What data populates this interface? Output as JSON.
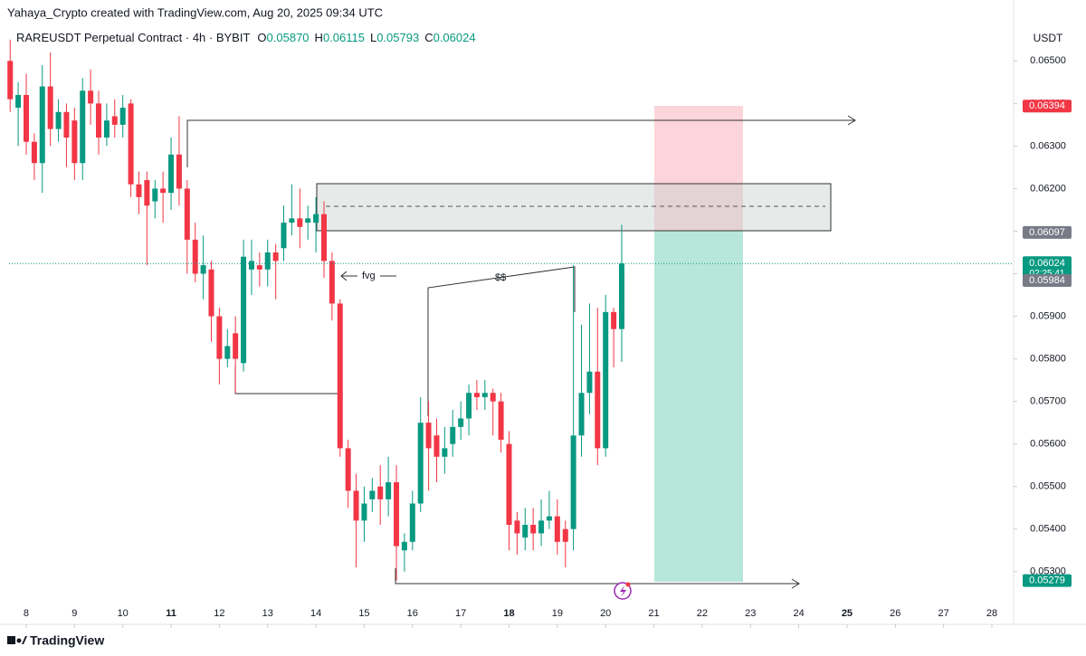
{
  "header": "Yahaya_Crypto created with TradingView.com, Aug 20, 2025 09:34 UTC",
  "legend": {
    "symbol": "RAREUSDT Perpetual Contract · 4h · BYBIT",
    "ohlc": [
      {
        "key": "O",
        "value": "0.05870"
      },
      {
        "key": "H",
        "value": "0.06115"
      },
      {
        "key": "L",
        "value": "0.05793"
      },
      {
        "key": "C",
        "value": "0.06024"
      }
    ]
  },
  "footer": "TradingView",
  "chart_data": {
    "type": "candlestick",
    "axis_unit": "USDT",
    "up_color": "#089981",
    "down_color": "#f23645",
    "x": [
      7.667,
      7.833,
      8,
      8.167,
      8.333,
      8.5,
      8.667,
      8.833,
      9,
      9.167,
      9.333,
      9.5,
      9.667,
      9.833,
      10,
      10.167,
      10.333,
      10.5,
      10.667,
      10.833,
      11,
      11.167,
      11.333,
      11.5,
      11.667,
      11.833,
      12,
      12.167,
      12.333,
      12.5,
      12.667,
      12.833,
      13,
      13.167,
      13.333,
      13.5,
      13.667,
      13.833,
      14,
      14.167,
      14.333,
      14.5,
      14.667,
      14.833,
      15,
      15.167,
      15.333,
      15.5,
      15.667,
      15.833,
      16,
      16.167,
      16.333,
      16.5,
      16.667,
      16.833,
      17,
      17.167,
      17.333,
      17.5,
      17.667,
      17.833,
      18,
      18.167,
      18.333,
      18.5,
      18.667,
      18.833,
      19,
      19.167,
      19.333,
      19.5,
      19.667,
      19.833,
      20,
      20.167,
      20.333
    ],
    "open": [
      0.065,
      0.0639,
      0.0642,
      0.0631,
      0.0626,
      0.0644,
      0.0634,
      0.0638,
      0.0636,
      0.0626,
      0.0643,
      0.064,
      0.0632,
      0.0637,
      0.0635,
      0.064,
      0.0621,
      0.0622,
      0.0617,
      0.062,
      0.0619,
      0.0628,
      0.062,
      0.0608,
      0.06,
      0.0601,
      0.059,
      0.058,
      0.0586,
      0.0579,
      0.0601,
      0.0602,
      0.0601,
      0.0605,
      0.0606,
      0.0612,
      0.0613,
      0.0612,
      0.0612,
      0.0614,
      0.0603,
      0.0593,
      0.0559,
      0.0549,
      0.0542,
      0.0547,
      0.055,
      0.0547,
      0.0551,
      0.0535,
      0.0537,
      0.0546,
      0.0565,
      0.0562,
      0.0557,
      0.056,
      0.0564,
      0.0566,
      0.0572,
      0.0571,
      0.0572,
      0.057,
      0.056,
      0.0542,
      0.0538,
      0.0541,
      0.0539,
      0.0542,
      0.0543,
      0.054,
      0.054,
      0.0562,
      0.0572,
      0.0577,
      0.0559,
      0.0591,
      0.0587
    ],
    "high": [
      0.0655,
      0.0645,
      0.0647,
      0.0633,
      0.0649,
      0.0652,
      0.0641,
      0.064,
      0.0639,
      0.0646,
      0.0648,
      0.0643,
      0.064,
      0.0641,
      0.0642,
      0.0641,
      0.0624,
      0.0624,
      0.0622,
      0.0624,
      0.0632,
      0.0637,
      0.0622,
      0.0612,
      0.0609,
      0.0603,
      0.0592,
      0.0587,
      0.059,
      0.0608,
      0.0608,
      0.0605,
      0.0608,
      0.0607,
      0.0616,
      0.0621,
      0.062,
      0.0616,
      0.0618,
      0.0617,
      0.0605,
      0.0594,
      0.0561,
      0.0553,
      0.055,
      0.0552,
      0.0555,
      0.0557,
      0.0555,
      0.0539,
      0.0549,
      0.0571,
      0.057,
      0.0566,
      0.0564,
      0.0568,
      0.057,
      0.0574,
      0.0575,
      0.0575,
      0.0573,
      0.0572,
      0.0563,
      0.0544,
      0.0545,
      0.0545,
      0.0547,
      0.0549,
      0.0547,
      0.0542,
      0.0602,
      0.0588,
      0.0593,
      0.0592,
      0.0595,
      0.0592,
      0.06115
    ],
    "low": [
      0.0638,
      0.063,
      0.0628,
      0.0622,
      0.0619,
      0.063,
      0.0631,
      0.0625,
      0.0622,
      0.0622,
      0.0635,
      0.0628,
      0.063,
      0.0632,
      0.0632,
      0.0618,
      0.0614,
      0.0602,
      0.0613,
      0.0612,
      0.0615,
      0.0616,
      0.06,
      0.0598,
      0.0594,
      0.0584,
      0.0574,
      0.0578,
      0.0572,
      0.0577,
      0.0595,
      0.0597,
      0.0597,
      0.0594,
      0.0603,
      0.0609,
      0.0606,
      0.0608,
      0.0605,
      0.0599,
      0.0589,
      0.0557,
      0.0545,
      0.0531,
      0.0537,
      0.0544,
      0.0541,
      0.0543,
      0.05279,
      0.053,
      0.0535,
      0.0544,
      0.0549,
      0.0551,
      0.0553,
      0.0557,
      0.0561,
      0.0562,
      0.0568,
      0.0568,
      0.0562,
      0.0558,
      0.0535,
      0.0534,
      0.0535,
      0.0535,
      0.0536,
      0.054,
      0.0534,
      0.0531,
      0.0535,
      0.0557,
      0.0567,
      0.0555,
      0.0557,
      0.0578,
      0.05793
    ],
    "close": [
      0.0641,
      0.0642,
      0.0631,
      0.0626,
      0.0644,
      0.0634,
      0.0638,
      0.0632,
      0.0626,
      0.0643,
      0.064,
      0.0632,
      0.0636,
      0.0635,
      0.0639,
      0.0621,
      0.0618,
      0.0616,
      0.062,
      0.0619,
      0.0628,
      0.062,
      0.0608,
      0.06,
      0.0602,
      0.059,
      0.058,
      0.0583,
      0.058,
      0.0604,
      0.0603,
      0.0601,
      0.0605,
      0.0603,
      0.0612,
      0.0613,
      0.0611,
      0.0613,
      0.0614,
      0.0603,
      0.0593,
      0.0559,
      0.0549,
      0.0542,
      0.0546,
      0.0549,
      0.0547,
      0.0551,
      0.0536,
      0.0537,
      0.0546,
      0.0565,
      0.0559,
      0.0557,
      0.0559,
      0.0564,
      0.0566,
      0.0572,
      0.0571,
      0.0572,
      0.057,
      0.0561,
      0.0541,
      0.0539,
      0.0541,
      0.0539,
      0.0542,
      0.0543,
      0.0537,
      0.0537,
      0.0562,
      0.0572,
      0.0577,
      0.0559,
      0.0591,
      0.0587,
      0.06024
    ],
    "xlim": [
      7.644,
      28.45
    ],
    "xticks": [
      8,
      9,
      10,
      11,
      12,
      13,
      14,
      15,
      16,
      17,
      18,
      19,
      20,
      21,
      22,
      23,
      24,
      25,
      26,
      27,
      28
    ],
    "xticks_bold": [
      11,
      18,
      25
    ],
    "ylim": [
      0.0524,
      0.0659
    ],
    "yticks": [
      {
        "value": 0.053,
        "label": "0.05300"
      },
      {
        "value": 0.054,
        "label": "0.05400"
      },
      {
        "value": 0.055,
        "label": "0.05500"
      },
      {
        "value": 0.056,
        "label": "0.05600"
      },
      {
        "value": 0.057,
        "label": "0.05700"
      },
      {
        "value": 0.058,
        "label": "0.05800"
      },
      {
        "value": 0.059,
        "label": "0.05900"
      },
      {
        "value": 0.06,
        "label": "0.06000"
      },
      {
        "value": 0.061,
        "label": "0.06100"
      },
      {
        "value": 0.062,
        "label": "0.06200"
      },
      {
        "value": 0.063,
        "label": "0.06300"
      },
      {
        "value": 0.064,
        "label": "0.06400"
      },
      {
        "value": 0.065,
        "label": "0.06500"
      }
    ],
    "price_labels": [
      {
        "value": 0.06394,
        "label": "0.06394",
        "color": "#f23645"
      },
      {
        "value": 0.06097,
        "label": "0.06097",
        "color": "#787b86"
      },
      {
        "value": 0.06024,
        "label": "0.06024",
        "color": "#089981",
        "countdown": "02:25:41"
      },
      {
        "value": 0.05984,
        "label": "0.05984",
        "color": "#787b86"
      },
      {
        "value": 0.05279,
        "label": "0.05279",
        "color": "#089981"
      }
    ],
    "annotations": [
      "fvg",
      "$$"
    ]
  }
}
